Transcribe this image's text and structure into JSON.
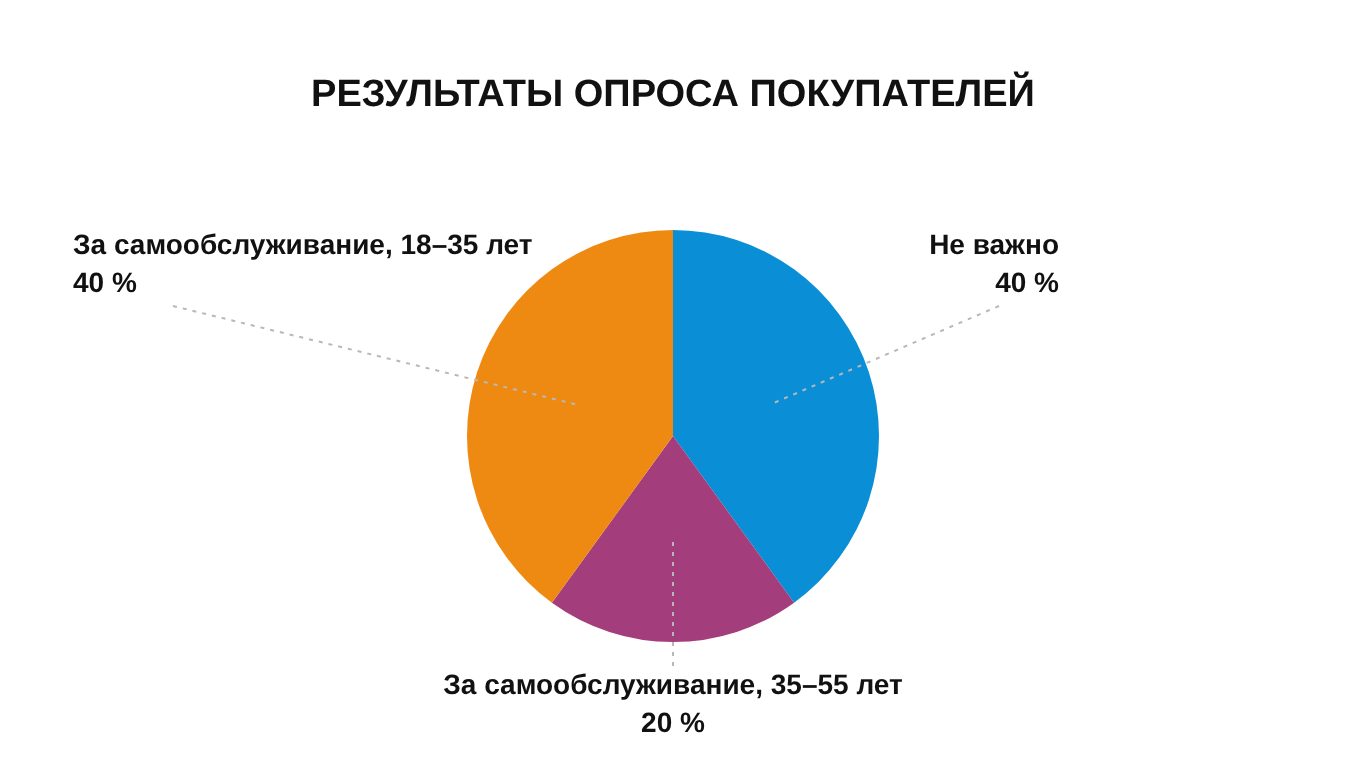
{
  "chart_data": {
    "type": "pie",
    "title": "РЕЗУЛЬТАТЫ ОПРОСА ПОКУПАТЕЛЕЙ",
    "categories": [
      "Не важно",
      "За самообслуживание, 35–55 лет",
      "За самообслуживание, 18–35 лет"
    ],
    "values": [
      40,
      20,
      40
    ],
    "value_labels": [
      "40 %",
      "20 %",
      "40 %"
    ],
    "colors": [
      "#0a8fd6",
      "#a33d7b",
      "#ee8a12"
    ],
    "legend": false
  }
}
